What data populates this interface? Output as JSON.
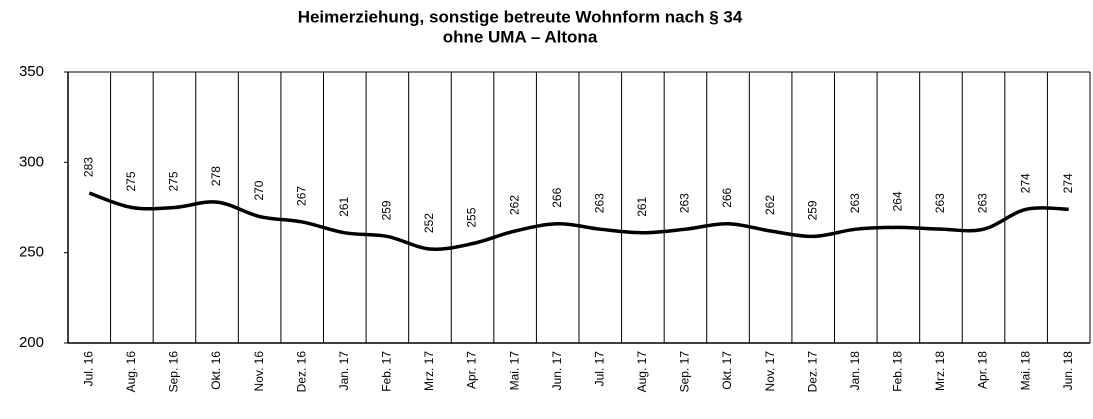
{
  "chart_data": {
    "type": "line",
    "title_lines": [
      "Heimerziehung, sonstige betreute Wohnform nach § 34",
      "ohne UMA – Altona"
    ],
    "categories": [
      "Jul. 16",
      "Aug. 16",
      "Sep. 16",
      "Okt. 16",
      "Nov. 16",
      "Dez. 16",
      "Jan. 17",
      "Feb. 17",
      "Mrz. 17",
      "Apr. 17",
      "Mai. 17",
      "Jun. 17",
      "Jul. 17",
      "Aug. 17",
      "Sep. 17",
      "Okt. 17",
      "Nov. 17",
      "Dez. 17",
      "Jan. 18",
      "Feb. 18",
      "Mrz. 18",
      "Apr. 18",
      "Mai. 18",
      "Jun. 18"
    ],
    "values": [
      283,
      275,
      275,
      278,
      270,
      267,
      261,
      259,
      252,
      255,
      262,
      266,
      263,
      261,
      263,
      266,
      262,
      259,
      263,
      264,
      263,
      263,
      274,
      274
    ],
    "color": "#000000",
    "ylim": [
      200,
      350
    ],
    "yticks": [
      200,
      250,
      300,
      350
    ]
  }
}
